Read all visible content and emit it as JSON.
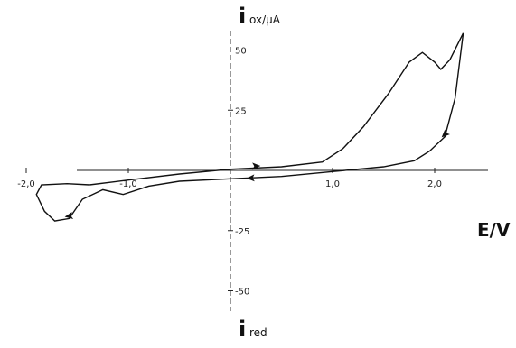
{
  "chart_data": {
    "type": "line",
    "title": "",
    "xlabel": "E/V",
    "ylabel_top": "i",
    "ylabel_top_sub": "ox/μA",
    "ylabel_bottom": "i",
    "ylabel_bottom_sub": "red",
    "xlim": [
      -2.2,
      2.4
    ],
    "ylim": [
      -78,
      65
    ],
    "x_ticks": [
      {
        "value": -2.0,
        "label": "-2,0"
      },
      {
        "value": -1.0,
        "label": "-1,0"
      },
      {
        "value": 1.0,
        "label": "1,0"
      },
      {
        "value": 2.0,
        "label": "2,0"
      }
    ],
    "y_ticks": [
      {
        "value": 50,
        "label": "50"
      },
      {
        "value": 25,
        "label": "25"
      },
      {
        "value": -25,
        "label": "-25"
      },
      {
        "value": -50,
        "label": "-50"
      }
    ],
    "grid": false,
    "series": [
      {
        "anodic_branch": [
          [
            -1.38,
            -6
          ],
          [
            -1.0,
            -4
          ],
          [
            -0.5,
            -1.5
          ],
          [
            0.0,
            0.5
          ],
          [
            0.5,
            1.5
          ],
          [
            0.9,
            3.5
          ],
          [
            1.1,
            9
          ],
          [
            1.3,
            18
          ],
          [
            1.55,
            32
          ],
          [
            1.75,
            45
          ],
          [
            1.88,
            49
          ],
          [
            2.0,
            45
          ],
          [
            2.06,
            42
          ],
          [
            2.15,
            46
          ],
          [
            2.28,
            57
          ]
        ],
        "cathodic_branch": [
          [
            2.28,
            57
          ],
          [
            2.2,
            30
          ],
          [
            2.1,
            14
          ],
          [
            1.95,
            8
          ],
          [
            1.8,
            4
          ],
          [
            1.5,
            1.5
          ],
          [
            1.0,
            -0.5
          ],
          [
            0.5,
            -2.5
          ],
          [
            0.0,
            -3.5
          ],
          [
            -0.5,
            -4.5
          ],
          [
            -0.8,
            -6.5
          ],
          [
            -1.05,
            -10
          ],
          [
            -1.25,
            -8
          ],
          [
            -1.45,
            -12
          ],
          [
            -1.58,
            -20
          ],
          [
            -1.72,
            -21
          ],
          [
            -1.82,
            -17
          ],
          [
            -1.9,
            -10
          ],
          [
            -1.85,
            -6
          ],
          [
            -1.6,
            -5.5
          ],
          [
            -1.38,
            -6
          ]
        ],
        "direction_arrows": [
          {
            "x": 0.25,
            "y": 1.8
          },
          {
            "x": 2.1,
            "y": 15
          },
          {
            "x": 0.2,
            "y": -3.2
          },
          {
            "x": -1.58,
            "y": -19
          }
        ]
      }
    ]
  }
}
